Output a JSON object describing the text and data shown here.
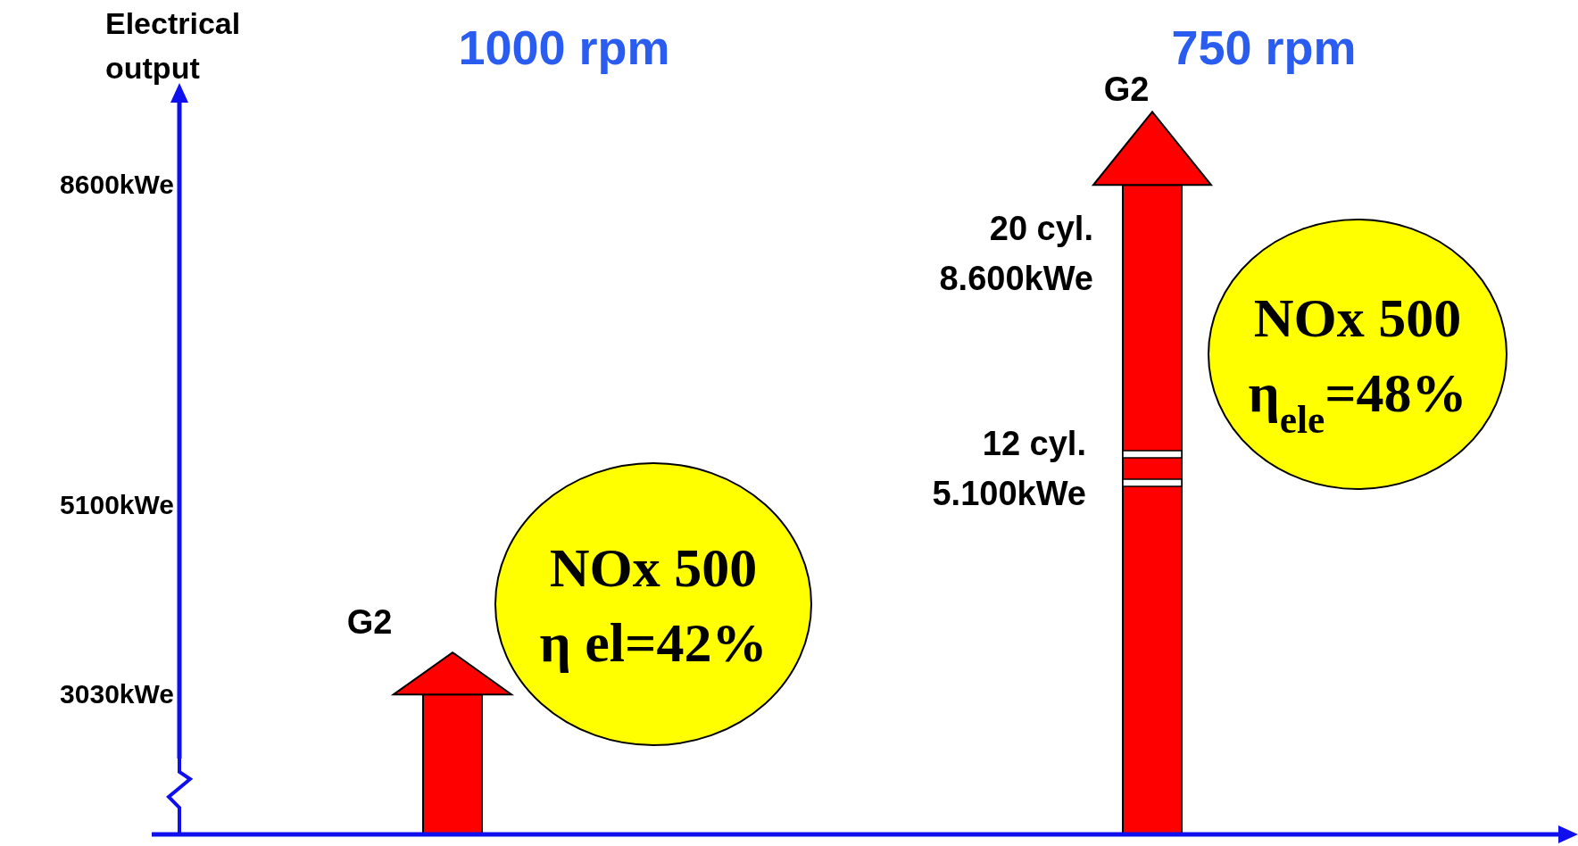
{
  "chart_data": {
    "type": "bar",
    "ylabel": "Electrical output",
    "categories": [
      "1000 rpm",
      "750 rpm"
    ],
    "values": [
      3030,
      8600
    ],
    "color": "#ff0000",
    "ylim": [
      1500,
      9500
    ],
    "yticks": [
      {
        "value": 3030,
        "label": "3030kWe"
      },
      {
        "value": 5100,
        "label": "5100kWe"
      },
      {
        "value": 8600,
        "label": "8600kWe"
      }
    ],
    "annotations": [
      "G2",
      "G2",
      "20 cyl.\n8.600kWe",
      "12 cyl.\n5.100kWe",
      "NOx 500\nη el=42%",
      "NOx 500\nη$_{ele}$=48%"
    ]
  }
}
